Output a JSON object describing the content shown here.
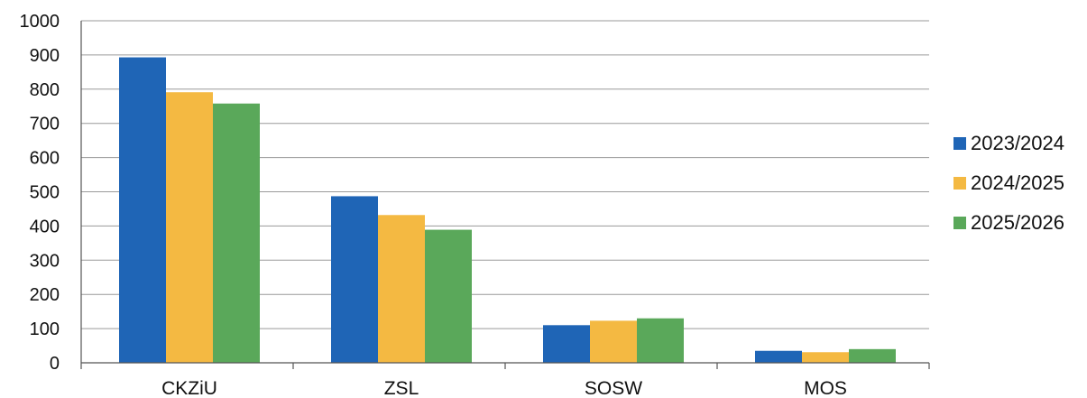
{
  "chart_data": {
    "type": "bar",
    "title": "",
    "xlabel": "",
    "ylabel": "",
    "categories": [
      "CKZiU",
      "ZSL",
      "SOSW",
      "MOS"
    ],
    "series": [
      {
        "name": "2023/2024",
        "color": "#1f65b6",
        "values": [
          893,
          487,
          110,
          35
        ]
      },
      {
        "name": "2024/2025",
        "color": "#f4b942",
        "values": [
          791,
          432,
          123,
          31
        ]
      },
      {
        "name": "2025/2026",
        "color": "#5aa85a",
        "values": [
          758,
          389,
          130,
          40
        ]
      }
    ],
    "ylim": [
      0,
      1000
    ],
    "yticks": [
      "0",
      "100",
      "200",
      "300",
      "400",
      "500",
      "600",
      "700",
      "800",
      "900",
      "1000"
    ],
    "grid": true,
    "legend_position": "right"
  }
}
